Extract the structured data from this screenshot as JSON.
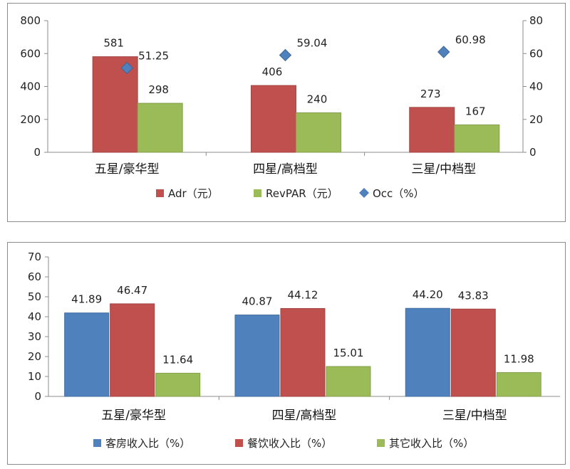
{
  "chart_data": [
    {
      "type": "bar",
      "categories": [
        "五星/豪华型",
        "四星/高档型",
        "三星/中档型"
      ],
      "series": [
        {
          "name": "Adr（元）",
          "values": [
            581,
            406,
            273
          ],
          "color": "#c0504d",
          "axis": "left"
        },
        {
          "name": "RevPAR（元）",
          "values": [
            298,
            240,
            167
          ],
          "color": "#9bbb59",
          "axis": "left"
        },
        {
          "name": "Occ（%）",
          "values": [
            51.25,
            59.04,
            60.98
          ],
          "color": "#4f81bd",
          "axis": "right",
          "marker": "diamond"
        }
      ],
      "ylim": [
        0,
        800
      ],
      "yticks": [
        0,
        200,
        400,
        600,
        800
      ],
      "y2lim": [
        0,
        80
      ],
      "y2ticks": [
        0,
        20,
        40,
        60,
        80
      ],
      "data_labels": [
        [
          "581",
          "406",
          "273"
        ],
        [
          "298",
          "240",
          "167"
        ],
        [
          "51.25",
          "59.04",
          "60.98"
        ]
      ],
      "legend_position": "bottom"
    },
    {
      "type": "bar",
      "categories": [
        "五星/豪华型",
        "四星/高档型",
        "三星/中档型"
      ],
      "series": [
        {
          "name": "客房收入比（%）",
          "values": [
            41.89,
            40.87,
            44.2
          ],
          "color": "#4f81bd"
        },
        {
          "name": "餐饮收入比（%）",
          "values": [
            46.47,
            44.12,
            43.83
          ],
          "color": "#c0504d"
        },
        {
          "name": "其它收入比（%）",
          "values": [
            11.64,
            15.01,
            11.98
          ],
          "color": "#9bbb59"
        }
      ],
      "ylim": [
        0,
        70
      ],
      "yticks": [
        0,
        10,
        20,
        30,
        40,
        50,
        60,
        70
      ],
      "data_labels": [
        [
          "41.89",
          "40.87",
          "44.20"
        ],
        [
          "46.47",
          "44.12",
          "43.83"
        ],
        [
          "11.64",
          "15.01",
          "11.98"
        ]
      ],
      "legend_position": "bottom"
    }
  ]
}
